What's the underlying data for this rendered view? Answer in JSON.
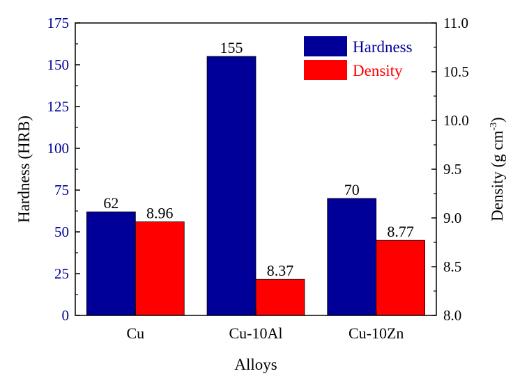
{
  "chart_data": {
    "type": "bar",
    "xlabel": "Alloys",
    "categories": [
      "Cu",
      "Cu-10Al",
      "Cu-10Zn"
    ],
    "series": [
      {
        "name": "Hardness",
        "axis": "left",
        "color": "#000099",
        "values": [
          62,
          155,
          70
        ],
        "labels": [
          "62",
          "155",
          "70"
        ]
      },
      {
        "name": "Density",
        "axis": "right",
        "color": "#ff0000",
        "values": [
          8.96,
          8.37,
          8.77
        ],
        "labels": [
          "8.96",
          "8.37",
          "8.77"
        ]
      }
    ],
    "y_left": {
      "label": "Hardness (HRB)",
      "color": "#000099",
      "ylim": [
        0,
        175
      ],
      "ticks": [
        0,
        25,
        50,
        75,
        100,
        125,
        150,
        175
      ],
      "tick_labels": [
        "0",
        "25",
        "50",
        "75",
        "100",
        "125",
        "150",
        "175"
      ]
    },
    "y_right": {
      "label_main": "Density (g cm",
      "label_sup": "-3",
      "label_end": ")",
      "color": "#000000",
      "ylim": [
        8.0,
        11.0
      ],
      "ticks": [
        8.0,
        8.5,
        9.0,
        9.5,
        10.0,
        10.5,
        11.0
      ],
      "tick_labels": [
        "8.0",
        "8.5",
        "9.0",
        "9.5",
        "10.0",
        "10.5",
        "11.0"
      ]
    },
    "legend": {
      "position": "top-right"
    },
    "grid": false
  }
}
